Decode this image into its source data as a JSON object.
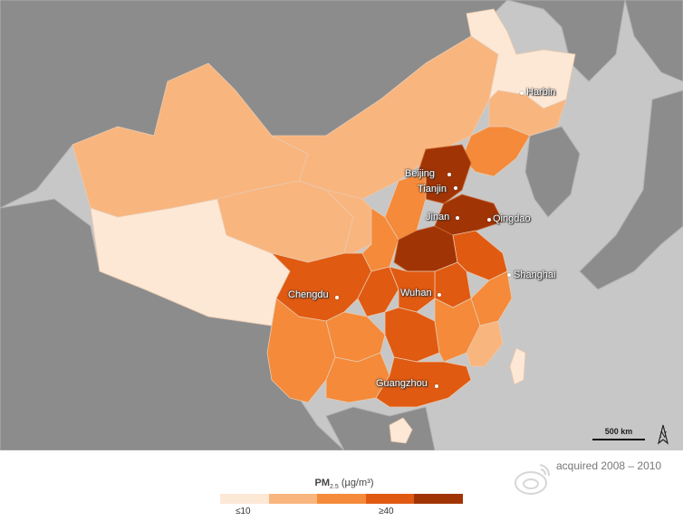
{
  "cities": [
    {
      "name": "Harbin"
    },
    {
      "name": "Beijing"
    },
    {
      "name": "Tianjin"
    },
    {
      "name": "Jinan"
    },
    {
      "name": "Qingdao"
    },
    {
      "name": "Shanghai"
    },
    {
      "name": "Chengdu"
    },
    {
      "name": "Wuhan"
    },
    {
      "name": "Guangzhou"
    }
  ],
  "scale": {
    "label": "500 km"
  },
  "north_arrow": {
    "label": "N"
  },
  "acquired": "acquired 2008 – 2010",
  "legend": {
    "title_main": "PM",
    "title_sub": "2.5",
    "title_unit": "(µg/m³)",
    "tick_low": "≤10",
    "tick_high": "≥40",
    "colors": [
      "#fde8d6",
      "#f9b57e",
      "#f48a3a",
      "#e05a12",
      "#a13405"
    ]
  },
  "colors": {
    "ocean": "#c7c7c7",
    "land_other": "#8c8c8c"
  }
}
